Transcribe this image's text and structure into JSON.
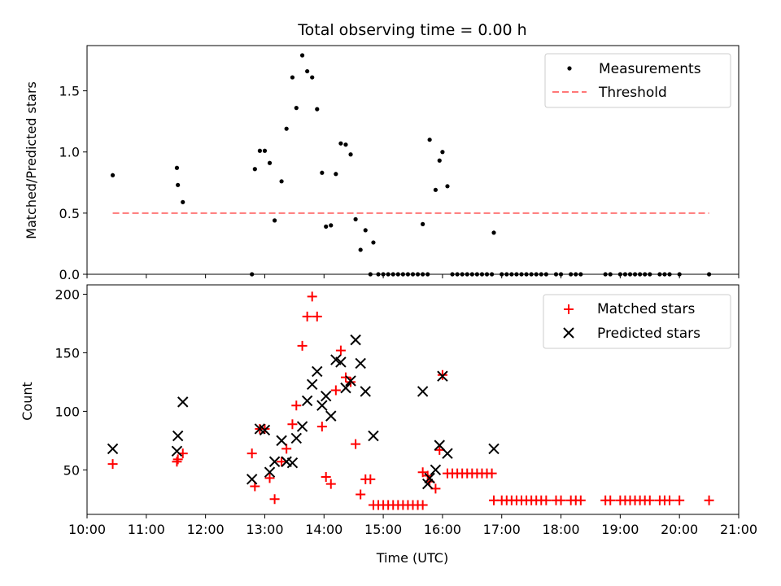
{
  "chart_data": [
    {
      "type": "scatter",
      "title": "Total observing time = 0.00 h",
      "ylabel": "Matched/Predicted stars",
      "xlabel": "",
      "xlim": [
        "10:00",
        "21:00"
      ],
      "ylim": [
        0,
        1.87
      ],
      "yticks": [
        "0.0",
        "0.5",
        "1.0",
        "1.5"
      ],
      "legend_position": "top-right",
      "series": [
        {
          "name": "Measurements",
          "marker": "dot",
          "color": "#000000",
          "points": [
            [
              "10:26",
              0.81
            ],
            [
              "11:31",
              0.87
            ],
            [
              "11:32",
              0.73
            ],
            [
              "11:37",
              0.59
            ],
            [
              "12:47",
              0.0
            ],
            [
              "12:50",
              0.86
            ],
            [
              "12:55",
              1.01
            ],
            [
              "13:00",
              1.01
            ],
            [
              "13:05",
              0.91
            ],
            [
              "13:10",
              0.44
            ],
            [
              "13:17",
              0.76
            ],
            [
              "13:22",
              1.19
            ],
            [
              "13:28",
              1.61
            ],
            [
              "13:32",
              1.36
            ],
            [
              "13:38",
              1.79
            ],
            [
              "13:43",
              1.66
            ],
            [
              "13:48",
              1.61
            ],
            [
              "13:53",
              1.35
            ],
            [
              "13:58",
              0.83
            ],
            [
              "14:02",
              0.39
            ],
            [
              "14:07",
              0.4
            ],
            [
              "14:12",
              0.82
            ],
            [
              "14:17",
              1.07
            ],
            [
              "14:22",
              1.06
            ],
            [
              "14:27",
              0.98
            ],
            [
              "14:32",
              0.45
            ],
            [
              "14:37",
              0.2
            ],
            [
              "14:42",
              0.36
            ],
            [
              "14:47",
              0.0
            ],
            [
              "14:50",
              0.26
            ],
            [
              "14:55",
              0.0
            ],
            [
              "15:00",
              0.0
            ],
            [
              "15:05",
              0.0
            ],
            [
              "15:10",
              0.0
            ],
            [
              "15:15",
              0.0
            ],
            [
              "15:20",
              0.0
            ],
            [
              "15:25",
              0.0
            ],
            [
              "15:30",
              0.0
            ],
            [
              "15:35",
              0.0
            ],
            [
              "15:40",
              0.0
            ],
            [
              "15:40",
              0.41
            ],
            [
              "15:45",
              0.0
            ],
            [
              "15:47",
              1.1
            ],
            [
              "15:53",
              0.69
            ],
            [
              "15:57",
              0.93
            ],
            [
              "16:00",
              1.0
            ],
            [
              "16:05",
              0.72
            ],
            [
              "16:10",
              0.0
            ],
            [
              "16:15",
              0.0
            ],
            [
              "16:20",
              0.0
            ],
            [
              "16:25",
              0.0
            ],
            [
              "16:30",
              0.0
            ],
            [
              "16:35",
              0.0
            ],
            [
              "16:40",
              0.0
            ],
            [
              "16:45",
              0.0
            ],
            [
              "16:50",
              0.0
            ],
            [
              "16:52",
              0.34
            ],
            [
              "17:00",
              0.0
            ],
            [
              "17:05",
              0.0
            ],
            [
              "17:10",
              0.0
            ],
            [
              "17:15",
              0.0
            ],
            [
              "17:20",
              0.0
            ],
            [
              "17:25",
              0.0
            ],
            [
              "17:30",
              0.0
            ],
            [
              "17:35",
              0.0
            ],
            [
              "17:40",
              0.0
            ],
            [
              "17:45",
              0.0
            ],
            [
              "17:55",
              0.0
            ],
            [
              "18:00",
              0.0
            ],
            [
              "18:10",
              0.0
            ],
            [
              "18:15",
              0.0
            ],
            [
              "18:20",
              0.0
            ],
            [
              "18:45",
              0.0
            ],
            [
              "18:50",
              0.0
            ],
            [
              "19:00",
              0.0
            ],
            [
              "19:05",
              0.0
            ],
            [
              "19:10",
              0.0
            ],
            [
              "19:15",
              0.0
            ],
            [
              "19:20",
              0.0
            ],
            [
              "19:25",
              0.0
            ],
            [
              "19:30",
              0.0
            ],
            [
              "19:40",
              0.0
            ],
            [
              "19:45",
              0.0
            ],
            [
              "19:50",
              0.0
            ],
            [
              "20:00",
              0.0
            ],
            [
              "20:30",
              0.0
            ]
          ]
        },
        {
          "name": "Threshold",
          "marker": "dashed-line",
          "color": "#ff7777",
          "points": [
            [
              "10:26",
              0.5
            ],
            [
              "20:30",
              0.5
            ]
          ]
        }
      ]
    },
    {
      "type": "scatter",
      "title": "",
      "ylabel": "Count",
      "xlabel": "Time (UTC)",
      "xlim": [
        "10:00",
        "21:00"
      ],
      "ylim": [
        12,
        208
      ],
      "yticks": [
        "50",
        "100",
        "150",
        "200"
      ],
      "xticks": [
        "10:00",
        "11:00",
        "12:00",
        "13:00",
        "14:00",
        "15:00",
        "16:00",
        "17:00",
        "18:00",
        "19:00",
        "20:00",
        "21:00"
      ],
      "legend_position": "top-right",
      "series": [
        {
          "name": "Matched stars",
          "marker": "plus",
          "color": "#ff0000",
          "points": [
            [
              "10:26",
              55
            ],
            [
              "11:31",
              57
            ],
            [
              "11:32",
              59
            ],
            [
              "11:37",
              64
            ],
            [
              "12:47",
              64
            ],
            [
              "12:50",
              36
            ],
            [
              "12:55",
              85
            ],
            [
              "13:00",
              85
            ],
            [
              "13:05",
              43
            ],
            [
              "13:10",
              25
            ],
            [
              "13:17",
              57
            ],
            [
              "13:22",
              68
            ],
            [
              "13:28",
              89
            ],
            [
              "13:32",
              105
            ],
            [
              "13:38",
              156
            ],
            [
              "13:43",
              181
            ],
            [
              "13:48",
              198
            ],
            [
              "13:53",
              181
            ],
            [
              "13:58",
              87
            ],
            [
              "14:02",
              44
            ],
            [
              "14:07",
              38
            ],
            [
              "14:12",
              118
            ],
            [
              "14:17",
              152
            ],
            [
              "14:22",
              129
            ],
            [
              "14:27",
              125
            ],
            [
              "14:32",
              72
            ],
            [
              "14:37",
              29
            ],
            [
              "14:42",
              42
            ],
            [
              "14:47",
              42
            ],
            [
              "14:50",
              20
            ],
            [
              "14:55",
              20
            ],
            [
              "15:00",
              20
            ],
            [
              "15:05",
              20
            ],
            [
              "15:10",
              20
            ],
            [
              "15:15",
              20
            ],
            [
              "15:20",
              20
            ],
            [
              "15:25",
              20
            ],
            [
              "15:30",
              20
            ],
            [
              "15:35",
              20
            ],
            [
              "15:40",
              20
            ],
            [
              "15:40",
              48
            ],
            [
              "15:45",
              45
            ],
            [
              "15:47",
              40
            ],
            [
              "15:53",
              34
            ],
            [
              "15:57",
              67
            ],
            [
              "16:00",
              131
            ],
            [
              "16:05",
              47
            ],
            [
              "16:10",
              47
            ],
            [
              "16:15",
              47
            ],
            [
              "16:20",
              47
            ],
            [
              "16:25",
              47
            ],
            [
              "16:30",
              47
            ],
            [
              "16:35",
              47
            ],
            [
              "16:40",
              47
            ],
            [
              "16:45",
              47
            ],
            [
              "16:50",
              47
            ],
            [
              "16:52",
              24
            ],
            [
              "17:00",
              24
            ],
            [
              "17:05",
              24
            ],
            [
              "17:10",
              24
            ],
            [
              "17:15",
              24
            ],
            [
              "17:20",
              24
            ],
            [
              "17:25",
              24
            ],
            [
              "17:30",
              24
            ],
            [
              "17:35",
              24
            ],
            [
              "17:40",
              24
            ],
            [
              "17:45",
              24
            ],
            [
              "17:55",
              24
            ],
            [
              "18:00",
              24
            ],
            [
              "18:10",
              24
            ],
            [
              "18:15",
              24
            ],
            [
              "18:20",
              24
            ],
            [
              "18:45",
              24
            ],
            [
              "18:50",
              24
            ],
            [
              "19:00",
              24
            ],
            [
              "19:05",
              24
            ],
            [
              "19:10",
              24
            ],
            [
              "19:15",
              24
            ],
            [
              "19:20",
              24
            ],
            [
              "19:25",
              24
            ],
            [
              "19:30",
              24
            ],
            [
              "19:40",
              24
            ],
            [
              "19:45",
              24
            ],
            [
              "19:50",
              24
            ],
            [
              "20:00",
              24
            ],
            [
              "20:30",
              24
            ]
          ]
        },
        {
          "name": "Predicted stars",
          "marker": "x",
          "color": "#000000",
          "points": [
            [
              "10:26",
              68
            ],
            [
              "11:31",
              66
            ],
            [
              "11:32",
              79
            ],
            [
              "11:37",
              108
            ],
            [
              "12:47",
              42
            ],
            [
              "12:55",
              85
            ],
            [
              "13:00",
              84
            ],
            [
              "13:05",
              48
            ],
            [
              "13:10",
              57
            ],
            [
              "13:17",
              75
            ],
            [
              "13:22",
              57
            ],
            [
              "13:28",
              56
            ],
            [
              "13:32",
              77
            ],
            [
              "13:38",
              87
            ],
            [
              "13:43",
              109
            ],
            [
              "13:48",
              123
            ],
            [
              "13:53",
              134
            ],
            [
              "13:58",
              105
            ],
            [
              "14:02",
              113
            ],
            [
              "14:07",
              96
            ],
            [
              "14:12",
              144
            ],
            [
              "14:17",
              142
            ],
            [
              "14:22",
              120
            ],
            [
              "14:27",
              126
            ],
            [
              "14:32",
              161
            ],
            [
              "14:37",
              141
            ],
            [
              "14:42",
              117
            ],
            [
              "14:50",
              79
            ],
            [
              "15:40",
              117
            ],
            [
              "15:45",
              38
            ],
            [
              "15:47",
              43
            ],
            [
              "15:53",
              50
            ],
            [
              "15:57",
              71
            ],
            [
              "16:00",
              130
            ],
            [
              "16:05",
              64
            ],
            [
              "16:52",
              68
            ]
          ]
        }
      ]
    }
  ]
}
